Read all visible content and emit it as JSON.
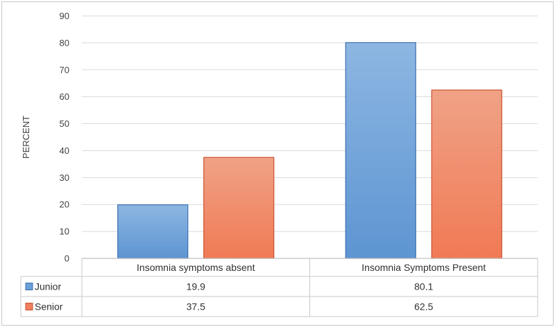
{
  "chart_data": {
    "type": "bar",
    "ylabel": "PERCENT",
    "ylim": [
      0,
      90
    ],
    "yticks": [
      0,
      10,
      20,
      30,
      40,
      50,
      60,
      70,
      80,
      90
    ],
    "categories": [
      "Insomnia symptoms absent",
      "Insomnia Symptoms Present"
    ],
    "series": [
      {
        "name": "Junior",
        "values": [
          19.9,
          80.1
        ],
        "value_labels": [
          "19.9",
          "80.1"
        ],
        "color": "#6a9fd8",
        "color_light": "#8cb4e0",
        "stroke": "#3d6fb0"
      },
      {
        "name": "Senior",
        "values": [
          37.5,
          62.5
        ],
        "value_labels": [
          "37.5",
          "62.5"
        ],
        "color": "#f0805e",
        "color_light": "#f09f82",
        "stroke": "#c9512d"
      }
    ],
    "gridlines": true,
    "legend": "data-table-left"
  }
}
